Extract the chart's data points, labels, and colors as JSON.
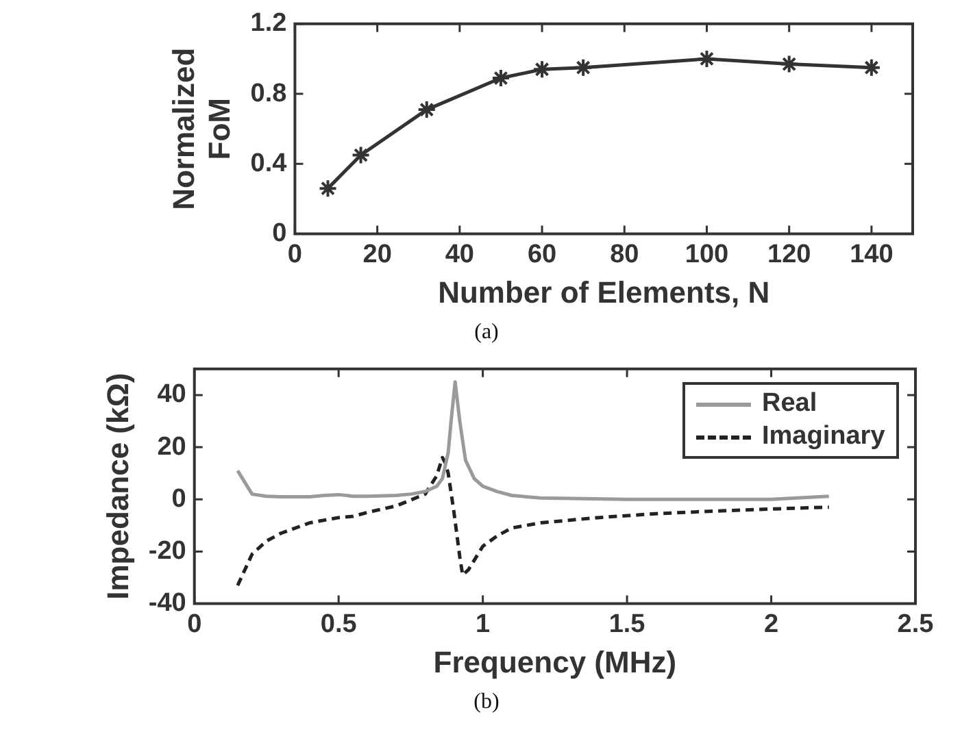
{
  "chart_data": [
    {
      "type": "line",
      "xlabel": "Number of Elements, N",
      "ylabel": "Normalized FoM",
      "annotations": [
        "(a)"
      ],
      "x": [
        8,
        16,
        32,
        50,
        60,
        70,
        100,
        120,
        140
      ],
      "series": [
        {
          "color": "#333333",
          "values": [
            0.26,
            0.45,
            0.71,
            0.89,
            0.94,
            0.95,
            1.0,
            0.97,
            0.95
          ]
        }
      ],
      "xlim": [
        0,
        150
      ],
      "xticks": [
        0,
        20,
        40,
        60,
        80,
        100,
        120,
        140
      ],
      "ylim": [
        0,
        1.2
      ],
      "yticks": [
        0,
        0.4,
        0.8,
        1.2
      ],
      "marker": "cross",
      "grid": false,
      "legend": false
    },
    {
      "type": "line",
      "xlabel": "Frequency (MHz)",
      "ylabel": "Impedance (kΩ)",
      "annotations": [
        "(b)"
      ],
      "series": [
        {
          "name": "Real",
          "color": "#9a9a9a",
          "line_style": "solid",
          "x": [
            0.15,
            0.2,
            0.25,
            0.3,
            0.4,
            0.45,
            0.5,
            0.55,
            0.6,
            0.7,
            0.75,
            0.8,
            0.84,
            0.86,
            0.88,
            0.89,
            0.904,
            0.92,
            0.94,
            0.97,
            1.0,
            1.05,
            1.1,
            1.2,
            1.5,
            2.0,
            2.2
          ],
          "values": [
            11,
            2,
            1.2,
            1,
            1,
            1.5,
            1.8,
            1.2,
            1.2,
            1.5,
            2,
            3,
            5,
            8,
            18,
            30,
            45,
            30,
            15,
            8,
            5,
            3,
            1.5,
            0.5,
            0,
            0,
            1.2
          ]
        },
        {
          "name": "Imaginary",
          "color": "#222222",
          "line_style": "dashed",
          "x": [
            0.15,
            0.2,
            0.25,
            0.3,
            0.4,
            0.5,
            0.55,
            0.6,
            0.7,
            0.8,
            0.84,
            0.86,
            0.87,
            0.88,
            0.9,
            0.92,
            0.93,
            0.95,
            1.0,
            1.05,
            1.1,
            1.2,
            1.4,
            1.6,
            1.8,
            2.0,
            2.2
          ],
          "values": [
            -33,
            -21,
            -16,
            -13,
            -9,
            -7,
            -6.5,
            -5,
            -2.5,
            2,
            9,
            16,
            14,
            10,
            -5,
            -22,
            -29,
            -27,
            -18,
            -14,
            -11,
            -9,
            -7,
            -5.5,
            -4.5,
            -3.7,
            -3
          ]
        }
      ],
      "xlim": [
        0,
        2.5
      ],
      "xticks": [
        0,
        0.5,
        1,
        1.5,
        2,
        2.5
      ],
      "ylim": [
        -40,
        50
      ],
      "yticks": [
        -40,
        -20,
        0,
        20,
        40
      ],
      "marker": "none",
      "grid": false,
      "legend": "top right"
    }
  ]
}
